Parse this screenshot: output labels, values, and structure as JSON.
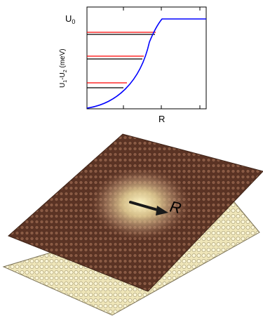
{
  "plot": {
    "y_label_main": "U",
    "y_label_sub1": "1",
    "y_label_dash": "-U",
    "y_label_sub2": "2",
    "y_label_unit": " (meV)",
    "u0_label_main": "U",
    "u0_label_sub": "0",
    "x_label": "R"
  },
  "layers": {
    "vector_label": "R"
  },
  "colors": {
    "potential_curve": "#0000ff",
    "red_level": "#ff0000",
    "black_level": "#000000",
    "top_sheet": "#7a4a36",
    "top_sheet_glow": "#f3e7a0",
    "bottom_sheet": "#e9dfae"
  }
}
